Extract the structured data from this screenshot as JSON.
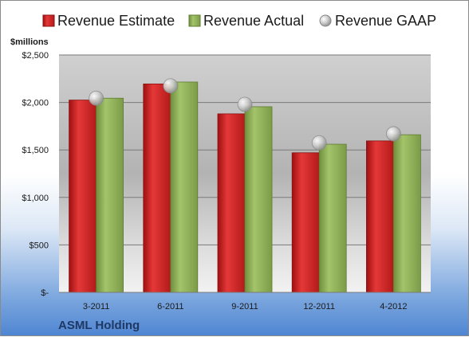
{
  "chart_data": {
    "type": "bar",
    "categories": [
      "3-2011",
      "6-2011",
      "9-2011",
      "12-2011",
      "4-2012"
    ],
    "series": [
      {
        "name": "Revenue Estimate",
        "kind": "bar",
        "color": "#d42a2a",
        "values": [
          2025,
          2195,
          1880,
          1470,
          1595
        ]
      },
      {
        "name": "Revenue Actual",
        "kind": "bar",
        "color": "#8fb05a",
        "values": [
          2045,
          2215,
          1955,
          1560,
          1660
        ]
      },
      {
        "name": "Revenue GAAP",
        "kind": "marker",
        "color": "#b8b8b8",
        "values": [
          2045,
          2175,
          1980,
          1575,
          1670
        ]
      }
    ],
    "yunit": "$millions",
    "company": "ASML Holding",
    "ylim": [
      0,
      2500
    ],
    "yticks": [
      0,
      500,
      1000,
      1500,
      2000,
      2500
    ],
    "ytick_labels": [
      "$-",
      "$500",
      "$1,000",
      "$1,500",
      "$2,000",
      "$2,500"
    ],
    "grid": true,
    "legend_position": "top"
  }
}
